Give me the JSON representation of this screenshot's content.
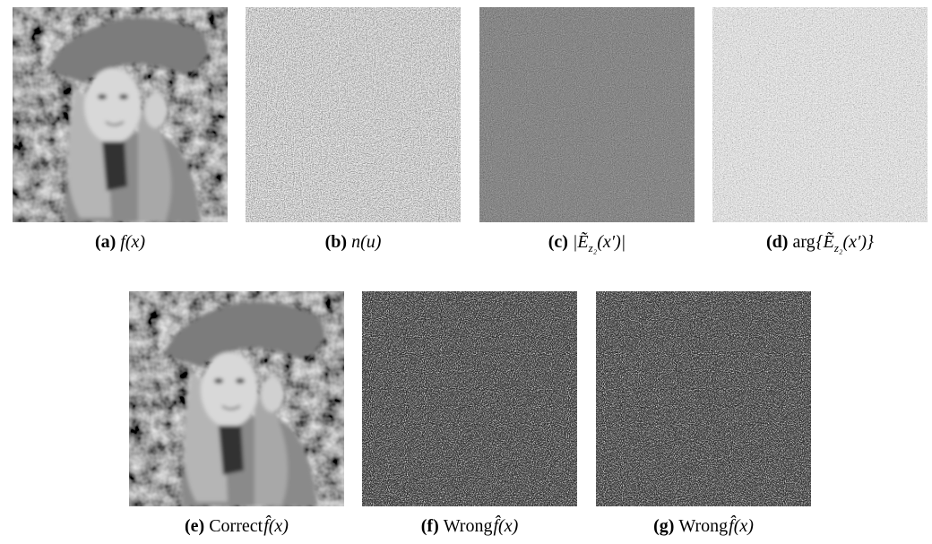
{
  "figures": [
    {
      "label": "(a)",
      "caption": [
        {
          "text": "f(x)",
          "style": "math"
        }
      ]
    },
    {
      "label": "(b)",
      "caption": [
        {
          "text": "n(u)",
          "style": "math"
        }
      ]
    },
    {
      "label": "(c)",
      "caption": [
        {
          "text": "|Ẽ",
          "style": "math"
        },
        {
          "text": "z₂",
          "style": "sub"
        },
        {
          "text": "(x′)|",
          "style": "math"
        }
      ]
    },
    {
      "label": "(d)",
      "caption": [
        {
          "text": "arg",
          "style": "text"
        },
        {
          "text": "{Ẽ",
          "style": "math"
        },
        {
          "text": "z₂",
          "style": "sub"
        },
        {
          "text": "(x′)}",
          "style": "math"
        }
      ]
    },
    {
      "label": "(e)",
      "caption": [
        {
          "text": "Correct",
          "style": "text"
        },
        {
          "text": "f̂(x)",
          "style": "math"
        }
      ]
    },
    {
      "label": "(f)",
      "caption": [
        {
          "text": "Wrong",
          "style": "text"
        },
        {
          "text": "f̂(x)",
          "style": "math"
        }
      ]
    },
    {
      "label": "(g)",
      "caption": [
        {
          "text": "Wrong",
          "style": "text"
        },
        {
          "text": "f̂(x)",
          "style": "math"
        }
      ]
    }
  ]
}
